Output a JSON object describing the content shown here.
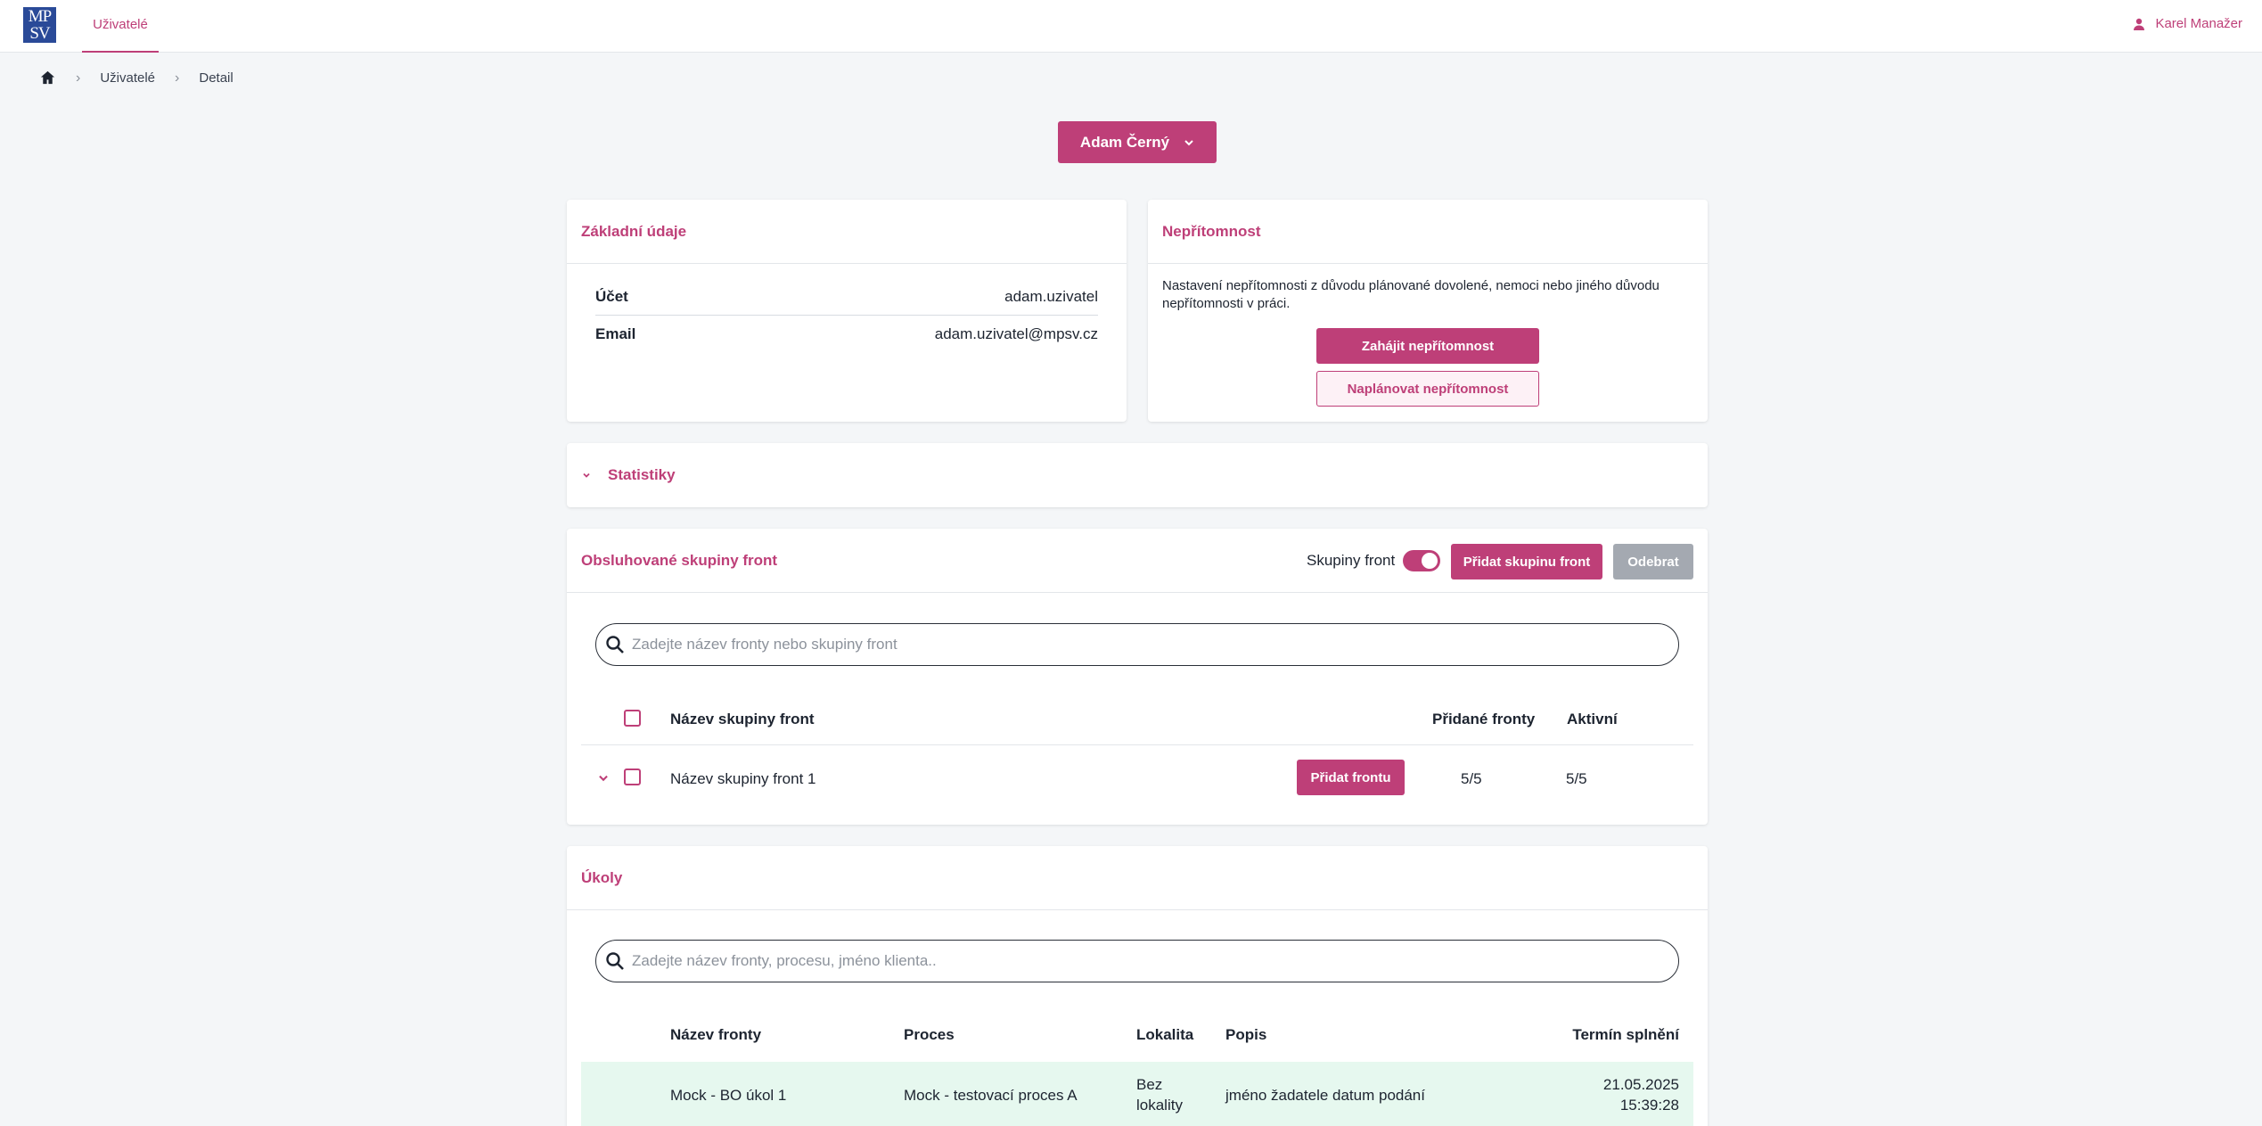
{
  "header": {
    "logo_top": "MP",
    "logo_bottom": "SV",
    "nav_tab": "Uživatelé",
    "user_name": "Karel Manažer"
  },
  "breadcrumb": {
    "items": [
      "Uživatelé",
      "Detail"
    ]
  },
  "user_select": {
    "label": "Adam Černý"
  },
  "basic_info": {
    "title": "Základní údaje",
    "rows": [
      {
        "label": "Účet",
        "value": "adam.uzivatel"
      },
      {
        "label": "Email",
        "value": "adam.uzivatel@mpsv.cz"
      }
    ]
  },
  "absence": {
    "title": "Nepřítomnost",
    "description": "Nastavení nepřítomnosti z důvodu plánované dovolené, nemoci nebo jiného důvodu nepřítomnosti v práci.",
    "start_button": "Zahájit nepřítomnost",
    "plan_button": "Naplánovat nepřítomnost"
  },
  "statistics": {
    "title": "Statistiky"
  },
  "queue_groups": {
    "title": "Obsluhované skupiny front",
    "toggle_label": "Skupiny front",
    "toggle_on": true,
    "add_button": "Přidat skupinu front",
    "remove_button": "Odebrat",
    "search_placeholder": "Zadejte název fronty nebo skupiny front",
    "columns": {
      "name": "Název skupiny front",
      "added": "Přidané fronty",
      "active": "Aktivní"
    },
    "rows": [
      {
        "name": "Název skupiny front 1",
        "add_queue_button": "Přidat frontu",
        "added": "5/5",
        "active": "5/5"
      }
    ]
  },
  "tasks": {
    "title": "Úkoly",
    "search_placeholder": "Zadejte název fronty, procesu, jméno klienta..",
    "columns": {
      "queue": "Název fronty",
      "process": "Proces",
      "locality": "Lokalita",
      "description": "Popis",
      "deadline": "Termín splnění"
    },
    "rows": [
      {
        "queue": "Mock - BO úkol 1",
        "process": "Mock - testovací proces A",
        "locality_1": "Bez",
        "locality_2": "lokality",
        "description": "jméno žadatele datum podání",
        "deadline_date": "21.05.2025",
        "deadline_time": "15:39:28"
      }
    ]
  },
  "colors": {
    "accent": "#be3f78",
    "disabled": "#a4a9b1",
    "row_highlight": "#e6f8ef"
  }
}
